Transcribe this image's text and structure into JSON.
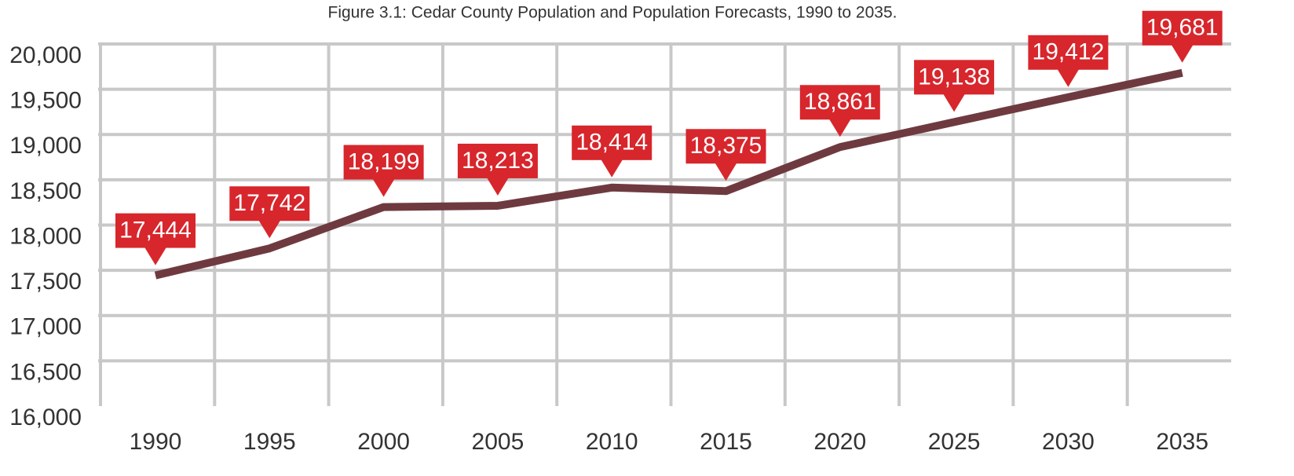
{
  "chart_data": {
    "type": "line",
    "title": "Figure 3.1: Cedar County Population and Population Forecasts, 1990 to 2035.",
    "categories": [
      "1990",
      "1995",
      "2000",
      "2005",
      "2010",
      "2015",
      "2020",
      "2025",
      "2030",
      "2035"
    ],
    "series": [
      {
        "name": "Population",
        "color": "#6e3a40",
        "values": [
          17444,
          17742,
          18199,
          18213,
          18414,
          18375,
          18861,
          19138,
          19412,
          19681
        ],
        "value_labels": [
          "17,444",
          "17,742",
          "18,199",
          "18,213",
          "18,414",
          "18,375",
          "18,861",
          "19,138",
          "19,412",
          "19,681"
        ]
      }
    ],
    "label_color": "#d7262c",
    "ylim": [
      16000,
      20000
    ],
    "yticks": [
      {
        "value": 16000,
        "label": "16,000"
      },
      {
        "value": 16500,
        "label": "16,500"
      },
      {
        "value": 17000,
        "label": "17,000"
      },
      {
        "value": 17500,
        "label": "17,500"
      },
      {
        "value": 18000,
        "label": "18,000"
      },
      {
        "value": 18500,
        "label": "18,500"
      },
      {
        "value": 19000,
        "label": "19,000"
      },
      {
        "value": 19500,
        "label": "19,500"
      },
      {
        "value": 20000,
        "label": "20,000"
      }
    ],
    "grid": true
  }
}
